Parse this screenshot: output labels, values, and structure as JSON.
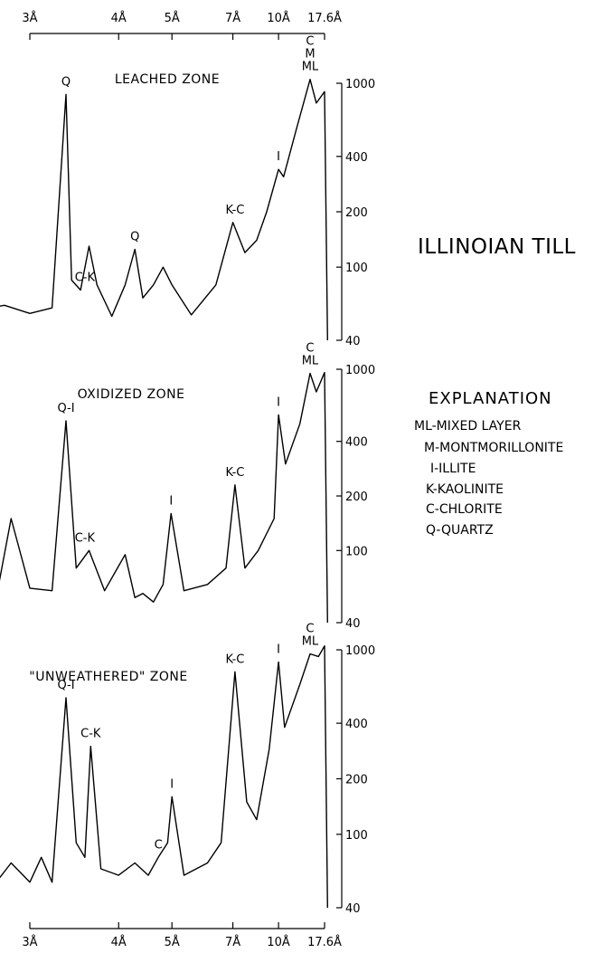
{
  "title": "ILLINOIAN TILL",
  "explanation": {
    "heading": "EXPLANATION",
    "items": [
      "ML-MIXED LAYER",
      "M-MONTMORILLONITE",
      "I-ILLITE",
      "K-KAOLINITE",
      "C-CHLORITE",
      "Q-QUARTZ"
    ]
  },
  "x_axis": {
    "tick_labels": [
      "3Å",
      "4Å",
      "5Å",
      "7Å",
      "10Å",
      "17.6Å"
    ],
    "tick_values_angstrom": [
      3,
      4,
      5,
      7,
      10,
      17.6
    ]
  },
  "y_axis": {
    "tick_labels": [
      "1000",
      "400",
      "200",
      "100",
      "40"
    ],
    "tick_values": [
      1000,
      400,
      200,
      100,
      40
    ],
    "scale": "log"
  },
  "chart_data": [
    {
      "type": "line",
      "title": "LEACHED ZONE",
      "x_scale": "reciprocal (d-spacing in Å)",
      "y_scale": "log",
      "ylim": [
        40,
        1000
      ],
      "series": [
        {
          "x": [
            2.6,
            2.8,
            3.0,
            3.2,
            3.34,
            3.4,
            3.5,
            3.6,
            3.7,
            3.9,
            4.1,
            4.26,
            4.4,
            4.6,
            4.8,
            5.0,
            5.5,
            6.3,
            7.0,
            7.6,
            8.3,
            9.0,
            10.0,
            10.5,
            12.0,
            14.2,
            15.5,
            17.6,
            18.5
          ],
          "y": [
            58,
            62,
            56,
            60,
            870,
            85,
            75,
            130,
            80,
            54,
            80,
            125,
            68,
            80,
            100,
            80,
            55,
            80,
            175,
            120,
            140,
            200,
            340,
            310,
            560,
            1050,
            780,
            900,
            40
          ]
        }
      ],
      "peak_labels": [
        {
          "label": "Q",
          "x": 3.34
        },
        {
          "label": "C-K",
          "x": 3.55
        },
        {
          "label": "Q",
          "x": 4.26
        },
        {
          "label": "K-C",
          "x": 7.1
        },
        {
          "label": "I",
          "x": 10.0
        },
        {
          "label": "C M ML",
          "x": 14.2
        }
      ]
    },
    {
      "type": "line",
      "title": "OXIDIZED ZONE",
      "x_scale": "reciprocal (d-spacing in Å)",
      "y_scale": "log",
      "ylim": [
        40,
        1000
      ],
      "series": [
        {
          "x": [
            2.6,
            2.75,
            2.85,
            3.0,
            3.2,
            3.34,
            3.45,
            3.6,
            3.8,
            4.1,
            4.26,
            4.4,
            4.6,
            4.8,
            4.98,
            5.3,
            6.0,
            6.7,
            7.1,
            7.6,
            8.4,
            9.6,
            10.0,
            10.7,
            12.5,
            14.2,
            15.5,
            17.6,
            18.5
          ],
          "y": [
            58,
            60,
            150,
            62,
            60,
            520,
            80,
            100,
            60,
            95,
            55,
            58,
            52,
            65,
            160,
            60,
            65,
            80,
            230,
            80,
            100,
            150,
            560,
            300,
            500,
            950,
            750,
            960,
            40
          ]
        }
      ],
      "peak_labels": [
        {
          "label": "Q-I",
          "x": 3.34
        },
        {
          "label": "C-K",
          "x": 3.55
        },
        {
          "label": "I",
          "x": 4.98
        },
        {
          "label": "K-C",
          "x": 7.1
        },
        {
          "label": "I",
          "x": 10.0
        },
        {
          "label": "C ML",
          "x": 14.2
        }
      ]
    },
    {
      "type": "line",
      "title": "\"UNWEATHERED\" ZONE",
      "x_scale": "reciprocal (d-spacing in Å)",
      "y_scale": "log",
      "ylim": [
        40,
        1000
      ],
      "series": [
        {
          "x": [
            2.55,
            2.7,
            2.85,
            3.0,
            3.1,
            3.2,
            3.34,
            3.45,
            3.55,
            3.62,
            3.75,
            4.0,
            4.26,
            4.5,
            4.7,
            4.9,
            5.0,
            5.3,
            6.0,
            6.5,
            7.1,
            7.7,
            8.3,
            9.2,
            10.0,
            10.6,
            12.5,
            14.2,
            16.0,
            17.6,
            18.5
          ],
          "y": [
            60,
            50,
            70,
            55,
            75,
            55,
            550,
            90,
            75,
            300,
            65,
            60,
            70,
            60,
            75,
            90,
            160,
            60,
            70,
            90,
            760,
            150,
            120,
            290,
            860,
            380,
            650,
            950,
            920,
            1050,
            40
          ]
        }
      ],
      "peak_labels": [
        {
          "label": "Q-I",
          "x": 3.34
        },
        {
          "label": "C-K",
          "x": 3.62
        },
        {
          "label": "C",
          "x": 4.7
        },
        {
          "label": "I",
          "x": 5.0
        },
        {
          "label": "K-C",
          "x": 7.1
        },
        {
          "label": "I",
          "x": 10.0
        },
        {
          "label": "C ML",
          "x": 14.2
        }
      ]
    }
  ]
}
